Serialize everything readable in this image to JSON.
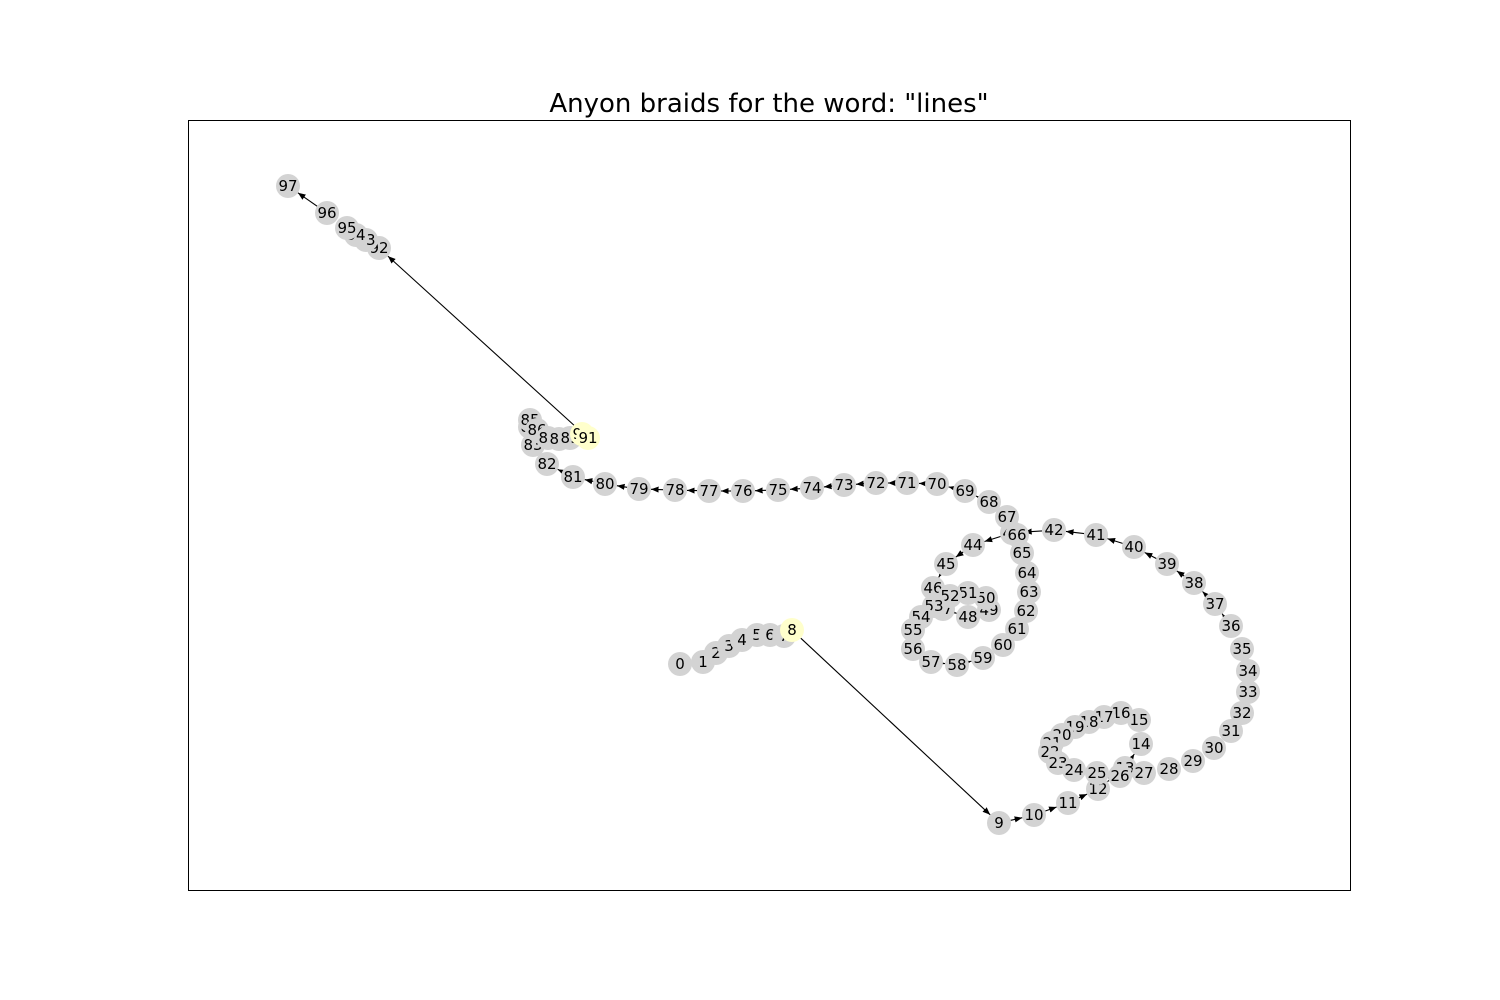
{
  "title": "Anyon braids for the word: \"lines\"",
  "colors": {
    "node": "#d3d3d3",
    "highlight": "#ffffcc",
    "edge": "#000000",
    "frame": "#000000",
    "background": "#ffffff"
  },
  "nodes": [
    {
      "id": "0",
      "label": "0"
    },
    {
      "id": "1",
      "label": "1"
    },
    {
      "id": "2",
      "label": "2"
    },
    {
      "id": "3",
      "label": "3"
    },
    {
      "id": "4",
      "label": "4"
    },
    {
      "id": "5",
      "label": "5"
    },
    {
      "id": "6",
      "label": "6"
    },
    {
      "id": "7",
      "label": "7"
    },
    {
      "id": "8",
      "label": "8",
      "highlight": true
    },
    {
      "id": "9",
      "label": "9"
    },
    {
      "id": "10",
      "label": "10"
    },
    {
      "id": "11",
      "label": "11"
    },
    {
      "id": "12",
      "label": "12"
    },
    {
      "id": "13",
      "label": "13"
    },
    {
      "id": "14",
      "label": "14"
    },
    {
      "id": "15",
      "label": "15"
    },
    {
      "id": "16",
      "label": "16"
    },
    {
      "id": "17",
      "label": "17"
    },
    {
      "id": "18",
      "label": "18"
    },
    {
      "id": "19",
      "label": "19"
    },
    {
      "id": "20",
      "label": "20"
    },
    {
      "id": "21",
      "label": "21"
    },
    {
      "id": "22",
      "label": "22"
    },
    {
      "id": "23",
      "label": "23"
    },
    {
      "id": "24",
      "label": "24"
    },
    {
      "id": "25",
      "label": "25"
    },
    {
      "id": "26",
      "label": "26"
    },
    {
      "id": "27",
      "label": "27"
    },
    {
      "id": "28",
      "label": "28"
    },
    {
      "id": "29",
      "label": "29"
    },
    {
      "id": "30",
      "label": "30"
    },
    {
      "id": "31",
      "label": "31"
    },
    {
      "id": "32",
      "label": "32"
    },
    {
      "id": "33",
      "label": "33"
    },
    {
      "id": "34",
      "label": "34"
    },
    {
      "id": "35",
      "label": "35"
    },
    {
      "id": "36",
      "label": "36"
    },
    {
      "id": "37",
      "label": "37"
    },
    {
      "id": "38",
      "label": "38"
    },
    {
      "id": "39",
      "label": "39"
    },
    {
      "id": "40",
      "label": "40"
    },
    {
      "id": "41",
      "label": "41"
    },
    {
      "id": "42",
      "label": "42"
    },
    {
      "id": "43",
      "label": "43"
    },
    {
      "id": "44",
      "label": "44"
    },
    {
      "id": "45",
      "label": "45"
    },
    {
      "id": "46",
      "label": "46"
    },
    {
      "id": "47",
      "label": "47"
    },
    {
      "id": "48",
      "label": "48"
    },
    {
      "id": "49",
      "label": "49"
    },
    {
      "id": "50",
      "label": "50"
    },
    {
      "id": "51",
      "label": "51"
    },
    {
      "id": "52",
      "label": "52"
    },
    {
      "id": "53",
      "label": "53"
    },
    {
      "id": "54",
      "label": "54"
    },
    {
      "id": "55",
      "label": "55"
    },
    {
      "id": "56",
      "label": "56"
    },
    {
      "id": "57",
      "label": "57"
    },
    {
      "id": "58",
      "label": "58"
    },
    {
      "id": "59",
      "label": "59"
    },
    {
      "id": "60",
      "label": "60"
    },
    {
      "id": "61",
      "label": "61"
    },
    {
      "id": "62",
      "label": "62"
    },
    {
      "id": "63",
      "label": "63"
    },
    {
      "id": "64",
      "label": "64"
    },
    {
      "id": "65",
      "label": "65"
    },
    {
      "id": "66",
      "label": "66"
    },
    {
      "id": "67",
      "label": "67"
    },
    {
      "id": "68",
      "label": "68"
    },
    {
      "id": "69",
      "label": "69"
    },
    {
      "id": "70",
      "label": "70"
    },
    {
      "id": "71",
      "label": "71"
    },
    {
      "id": "72",
      "label": "72"
    },
    {
      "id": "73",
      "label": "73"
    },
    {
      "id": "74",
      "label": "74"
    },
    {
      "id": "75",
      "label": "75"
    },
    {
      "id": "76",
      "label": "76"
    },
    {
      "id": "77",
      "label": "77"
    },
    {
      "id": "78",
      "label": "78"
    },
    {
      "id": "79",
      "label": "79"
    },
    {
      "id": "80",
      "label": "80"
    },
    {
      "id": "81",
      "label": "81"
    },
    {
      "id": "82",
      "label": "82"
    },
    {
      "id": "83",
      "label": "83"
    },
    {
      "id": "84",
      "label": "84"
    },
    {
      "id": "85",
      "label": "85"
    },
    {
      "id": "86",
      "label": "86"
    },
    {
      "id": "87",
      "label": "87"
    },
    {
      "id": "88",
      "label": "88"
    },
    {
      "id": "89",
      "label": "89"
    },
    {
      "id": "90",
      "label": "90",
      "highlight": true
    },
    {
      "id": "91",
      "label": "91",
      "highlight": true
    },
    {
      "id": "92",
      "label": "92"
    },
    {
      "id": "93",
      "label": "93"
    },
    {
      "id": "94",
      "label": "94"
    },
    {
      "id": "95",
      "label": "95"
    },
    {
      "id": "96",
      "label": "96"
    },
    {
      "id": "97",
      "label": "97"
    }
  ],
  "edges": "sequential"
}
